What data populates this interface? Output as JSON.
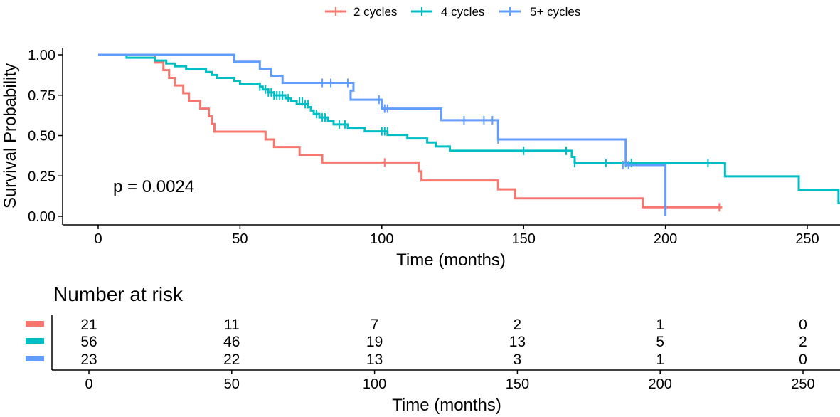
{
  "chart_data": {
    "type": "line",
    "subtype": "kaplan-meier",
    "xlabel": "Time (months)",
    "ylabel": "Survival Probability",
    "xlim": [
      -12,
      262
    ],
    "ylim": [
      0,
      1
    ],
    "x_ticks": [
      0,
      50,
      100,
      150,
      200,
      250
    ],
    "x_tick_labels": [
      "0",
      "50",
      "100",
      "150",
      "200",
      "250"
    ],
    "y_ticks": [
      0,
      0.25,
      0.5,
      0.75,
      1.0
    ],
    "y_tick_labels": [
      "0.00",
      "0.25",
      "0.50",
      "0.75",
      "1.00"
    ],
    "legend_position": "top",
    "annotation": "p = 0.0024",
    "series": [
      {
        "name": "2 cycles",
        "color": "#f8766d",
        "steps": [
          [
            0,
            1.0
          ],
          [
            20,
            0.952
          ],
          [
            23,
            0.905
          ],
          [
            25,
            0.857
          ],
          [
            27,
            0.81
          ],
          [
            30,
            0.762
          ],
          [
            32,
            0.714
          ],
          [
            36,
            0.667
          ],
          [
            39,
            0.619
          ],
          [
            40,
            0.571
          ],
          [
            41,
            0.524
          ],
          [
            59,
            0.476
          ],
          [
            62,
            0.429
          ],
          [
            71,
            0.381
          ],
          [
            79,
            0.333
          ],
          [
            113,
            0.278
          ],
          [
            114,
            0.222
          ],
          [
            141,
            0.167
          ],
          [
            147,
            0.111
          ],
          [
            192,
            0.056
          ],
          [
            220,
            0.056
          ]
        ],
        "censors": [
          [
            101,
            0.333
          ],
          [
            219,
            0.056
          ]
        ]
      },
      {
        "name": "4 cycles",
        "color": "#00bfc4",
        "steps": [
          [
            0,
            1.0
          ],
          [
            10,
            0.982
          ],
          [
            20,
            0.964
          ],
          [
            24,
            0.946
          ],
          [
            27,
            0.929
          ],
          [
            31,
            0.911
          ],
          [
            38,
            0.893
          ],
          [
            40,
            0.875
          ],
          [
            42,
            0.857
          ],
          [
            48,
            0.839
          ],
          [
            50,
            0.821
          ],
          [
            57,
            0.803
          ],
          [
            58,
            0.785
          ],
          [
            60,
            0.767
          ],
          [
            62,
            0.749
          ],
          [
            66,
            0.731
          ],
          [
            68,
            0.713
          ],
          [
            70,
            0.694
          ],
          [
            74,
            0.676
          ],
          [
            75,
            0.655
          ],
          [
            76,
            0.633
          ],
          [
            78,
            0.612
          ],
          [
            81,
            0.59
          ],
          [
            83,
            0.569
          ],
          [
            88,
            0.548
          ],
          [
            94,
            0.526
          ],
          [
            102,
            0.504
          ],
          [
            109,
            0.482
          ],
          [
            116,
            0.457
          ],
          [
            119,
            0.432
          ],
          [
            124,
            0.406
          ],
          [
            167,
            0.368
          ],
          [
            168,
            0.33
          ],
          [
            221,
            0.247
          ],
          [
            247,
            0.165
          ],
          [
            261,
            0.082
          ],
          [
            262,
            0.082
          ]
        ],
        "censors": [
          [
            57,
            0.803
          ],
          [
            59,
            0.785
          ],
          [
            60,
            0.767
          ],
          [
            61,
            0.767
          ],
          [
            62,
            0.749
          ],
          [
            63,
            0.749
          ],
          [
            64,
            0.749
          ],
          [
            65,
            0.749
          ],
          [
            67,
            0.731
          ],
          [
            71,
            0.713
          ],
          [
            72,
            0.713
          ],
          [
            73,
            0.694
          ],
          [
            74,
            0.694
          ],
          [
            77,
            0.633
          ],
          [
            79,
            0.612
          ],
          [
            80,
            0.612
          ],
          [
            85,
            0.569
          ],
          [
            87,
            0.569
          ],
          [
            100,
            0.526
          ],
          [
            101,
            0.526
          ],
          [
            102,
            0.526
          ],
          [
            150,
            0.406
          ],
          [
            165,
            0.406
          ],
          [
            168,
            0.33
          ],
          [
            179,
            0.33
          ],
          [
            186,
            0.33
          ],
          [
            188,
            0.33
          ],
          [
            215,
            0.33
          ]
        ]
      },
      {
        "name": "5+ cycles",
        "color": "#619cff",
        "steps": [
          [
            0,
            1.0
          ],
          [
            48,
            0.957
          ],
          [
            57,
            0.913
          ],
          [
            61,
            0.87
          ],
          [
            65,
            0.826
          ],
          [
            90,
            0.778
          ],
          [
            89,
            0.722
          ],
          [
            100,
            0.667
          ],
          [
            121,
            0.595
          ],
          [
            141,
            0.476
          ],
          [
            186,
            0.317
          ],
          [
            200,
            0.0
          ]
        ],
        "censors": [
          [
            79,
            0.826
          ],
          [
            82,
            0.826
          ],
          [
            88,
            0.826
          ],
          [
            99,
            0.722
          ],
          [
            101,
            0.667
          ],
          [
            102,
            0.667
          ],
          [
            129,
            0.595
          ],
          [
            136,
            0.595
          ],
          [
            139,
            0.595
          ],
          [
            141,
            0.476
          ],
          [
            185,
            0.317
          ],
          [
            187,
            0.317
          ]
        ]
      }
    ]
  },
  "risk_table": {
    "title": "Number at risk",
    "xlabel": "Time (months)",
    "times": [
      0,
      50,
      100,
      150,
      200,
      250
    ],
    "time_labels": [
      "0",
      "50",
      "100",
      "150",
      "200",
      "250"
    ],
    "rows": [
      {
        "name": "2 cycles",
        "color": "#f8766d",
        "counts": [
          "21",
          "11",
          "7",
          "2",
          "1",
          "0"
        ]
      },
      {
        "name": "4 cycles",
        "color": "#00bfc4",
        "counts": [
          "56",
          "46",
          "19",
          "13",
          "5",
          "2"
        ]
      },
      {
        "name": "5+ cycles",
        "color": "#619cff",
        "counts": [
          "23",
          "22",
          "13",
          "3",
          "1",
          "0"
        ]
      }
    ]
  }
}
